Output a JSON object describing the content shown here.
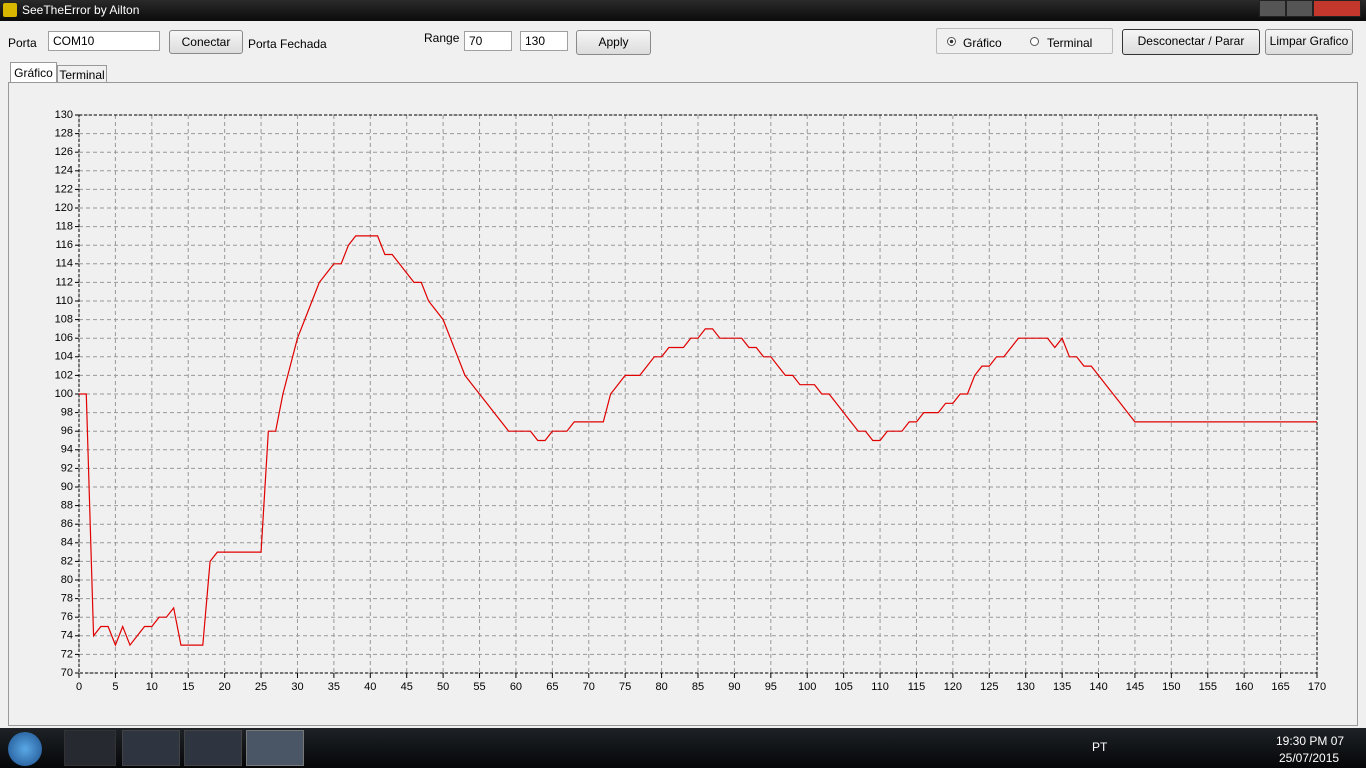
{
  "window": {
    "title": "SeeTheError by Ailton"
  },
  "toolbar": {
    "porta_label": "Porta",
    "port": "COM10",
    "connect": "Conectar",
    "status": "Porta Fechada",
    "range_label": "Range",
    "range_min": "70",
    "range_max": "130",
    "apply": "Apply",
    "radio": [
      "Gráfico",
      "Terminal"
    ],
    "disconnect": "Desconectar / Parar",
    "clear": "Limpar Grafico"
  },
  "tabs": [
    "Gráfico",
    "Terminal"
  ],
  "chart_data": {
    "type": "line",
    "color": "#e00000",
    "grid": true,
    "x": [
      0,
      1,
      2,
      3,
      4,
      5,
      6,
      7,
      8,
      9,
      10,
      11,
      12,
      13,
      14,
      15,
      16,
      17,
      18,
      19,
      20,
      21,
      22,
      23,
      24,
      25,
      26,
      27,
      28,
      29,
      30,
      31,
      32,
      33,
      34,
      35,
      36,
      37,
      38,
      39,
      40,
      41,
      42,
      43,
      44,
      45,
      46,
      47,
      48,
      49,
      50,
      51,
      52,
      53,
      54,
      55,
      56,
      57,
      58,
      59,
      60,
      61,
      62,
      63,
      64,
      65,
      66,
      67,
      68,
      69,
      70,
      71,
      72,
      73,
      74,
      75,
      76,
      77,
      78,
      79,
      80,
      81,
      82,
      83,
      84,
      85,
      86,
      87,
      88,
      89,
      90,
      91,
      92,
      93,
      94,
      95,
      96,
      97,
      98,
      99,
      100,
      101,
      102,
      103,
      104,
      105,
      106,
      107,
      108,
      109,
      110,
      111,
      112,
      113,
      114,
      115,
      116,
      117,
      118,
      119,
      120,
      121,
      122,
      123,
      124,
      125,
      126,
      127,
      128,
      129,
      130,
      131,
      132,
      133,
      134,
      135,
      136,
      137,
      138,
      139,
      140,
      141,
      142,
      143,
      144,
      145,
      146,
      147,
      148,
      149,
      150,
      151,
      152,
      153,
      154,
      155,
      156,
      157,
      158,
      159,
      160,
      161,
      162,
      163,
      164,
      165,
      166,
      167,
      168,
      169,
      170
    ],
    "values": [
      100,
      100,
      74,
      75,
      75,
      73,
      75,
      73,
      74,
      75,
      75,
      76,
      76,
      77,
      73,
      73,
      73,
      73,
      82,
      83,
      83,
      83,
      83,
      83,
      83,
      83,
      96,
      96,
      100,
      103,
      106,
      108,
      110,
      112,
      113,
      114,
      114,
      116,
      117,
      117,
      117,
      117,
      115,
      115,
      114,
      113,
      112,
      112,
      110,
      109,
      108,
      106,
      104,
      102,
      101,
      100,
      99,
      98,
      97,
      96,
      96,
      96,
      96,
      95,
      95,
      96,
      96,
      96,
      97,
      97,
      97,
      97,
      97,
      100,
      101,
      102,
      102,
      102,
      103,
      104,
      104,
      105,
      105,
      105,
      106,
      106,
      107,
      107,
      106,
      106,
      106,
      106,
      105,
      105,
      104,
      104,
      103,
      102,
      102,
      101,
      101,
      101,
      100,
      100,
      99,
      98,
      97,
      96,
      96,
      95,
      95,
      96,
      96,
      96,
      97,
      97,
      98,
      98,
      98,
      99,
      99,
      100,
      100,
      102,
      103,
      103,
      104,
      104,
      105,
      106,
      106,
      106,
      106,
      106,
      105,
      106,
      104,
      104,
      103,
      103,
      102,
      101,
      100,
      99,
      98,
      97,
      97,
      97,
      97,
      97,
      97,
      97,
      97,
      97,
      97,
      97,
      97,
      97,
      97,
      97,
      97,
      97,
      97,
      97,
      97,
      97,
      97,
      97,
      97,
      97,
      97
    ],
    "xlim": [
      0,
      170
    ],
    "ylim": [
      70,
      130
    ],
    "xticks": [
      0,
      5,
      10,
      15,
      20,
      25,
      30,
      35,
      40,
      45,
      50,
      55,
      60,
      65,
      70,
      75,
      80,
      85,
      90,
      95,
      100,
      105,
      110,
      115,
      120,
      125,
      130,
      135,
      140,
      145,
      150,
      155,
      160,
      165,
      170
    ],
    "yticks": [
      70,
      72,
      74,
      76,
      78,
      80,
      82,
      84,
      86,
      88,
      90,
      92,
      94,
      96,
      98,
      100,
      102,
      104,
      106,
      108,
      110,
      112,
      114,
      116,
      118,
      120,
      122,
      124,
      126,
      128,
      130
    ]
  },
  "taskbar": {
    "language": "PT",
    "time": "19:30 PM 07",
    "date": "25/07/2015"
  }
}
